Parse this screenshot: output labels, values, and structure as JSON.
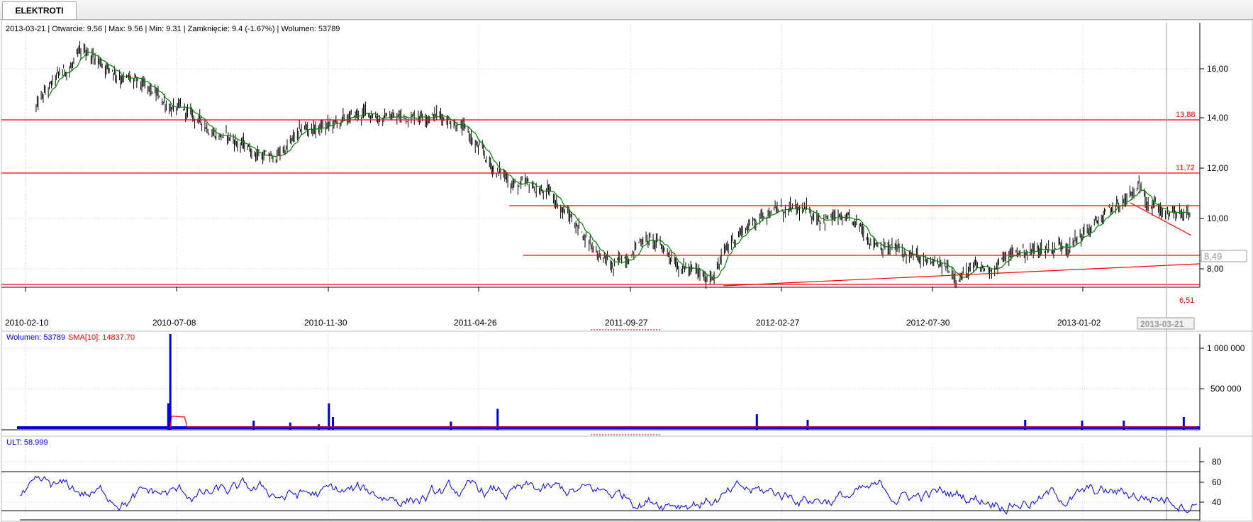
{
  "window": {
    "tab_label": "ELEKTROTI"
  },
  "price_panel": {
    "info_line": "2013-03-21 | Otwarcie: 9.56 | Max: 9.56 | Min: 9.31 | Zamknięcie: 9.4 (-1.67%)  | Wolumen: 53789",
    "current_price_label": "8,49",
    "level_labels": [
      "13,88",
      "11,72",
      "6,51"
    ],
    "x_labels": [
      "2010-02-10",
      "2010-07-08",
      "2010-11-30",
      "2011-04-26",
      "2011-09-27",
      "2012-02-27",
      "2012-07-30",
      "2013-01-02"
    ],
    "cursor_date": "2013-03-21"
  },
  "volume_panel": {
    "info_volume": "Wolumen: 53789",
    "info_sma": "SMA[10]: 14837.70"
  },
  "ult_panel": {
    "info": "ULT: 58.999"
  },
  "colors": {
    "price_bar": "#000000",
    "sma_line": "#008000",
    "support_resistance": "#ff0000",
    "volume_bar": "#0000d0",
    "volume_sma": "#ff0000",
    "ult_line": "#0000ff",
    "grid": "#c8c8c8"
  },
  "chart_data": [
    {
      "type": "line",
      "title": "",
      "x_tick_labels": [
        "2010-02-10",
        "2010-07-08",
        "2010-11-30",
        "2011-04-26",
        "2011-09-27",
        "2012-02-27",
        "2012-07-30",
        "2013-01-02"
      ],
      "y_tick_labels": [
        "8,00",
        "10,00",
        "12,00",
        "14,00",
        "16,00"
      ],
      "ylim": [
        6.4,
        17.2
      ],
      "grid": true,
      "series": [
        {
          "name": "",
          "dates": [
            "2010-02-01",
            "2010-03-01",
            "2010-04-01",
            "2010-05-01",
            "2010-06-01",
            "2010-07-01",
            "2010-08-01",
            "2010-09-01",
            "2010-10-01",
            "2010-11-01",
            "2010-12-01",
            "2011-01-01",
            "2011-02-01",
            "2011-03-01",
            "2011-04-01",
            "2011-05-01",
            "2011-06-01",
            "2011-07-01",
            "2011-08-01",
            "2011-09-01",
            "2011-10-01",
            "2011-11-01",
            "2011-12-01",
            "2012-01-01",
            "2012-02-01",
            "2012-03-01",
            "2012-04-01",
            "2012-05-01",
            "2012-06-01",
            "2012-07-01",
            "2012-08-01",
            "2012-09-01",
            "2012-10-01",
            "2012-11-01",
            "2012-12-01",
            "2013-01-01",
            "2013-02-01",
            "2013-03-01"
          ],
          "close": [
            13.2,
            14.8,
            16.0,
            15.2,
            14.3,
            13.6,
            12.9,
            12.2,
            11.6,
            12.8,
            13.0,
            13.5,
            13.3,
            13.6,
            13.2,
            11.4,
            10.5,
            10.2,
            8.7,
            7.1,
            8.5,
            7.6,
            6.6,
            8.6,
            9.6,
            9.4,
            9.3,
            8.7,
            8.0,
            7.4,
            7.0,
            7.1,
            7.8,
            8.0,
            8.4,
            9.4,
            10.4,
            9.3
          ]
        }
      ],
      "annotations": [
        {
          "type": "horizontal",
          "value": 13.88,
          "label": "13,88"
        },
        {
          "type": "horizontal",
          "value": 11.72,
          "label": "11,72"
        },
        {
          "type": "horizontal",
          "value": 6.51,
          "label": "6,51"
        },
        {
          "type": "horizontal",
          "value": 10.45,
          "label": ""
        },
        {
          "type": "horizontal",
          "value": 8.49,
          "label": ""
        },
        {
          "type": "trendline",
          "from": [
            6.51,
            "2011-12-12"
          ],
          "to": [
            7.4,
            "2013-03-28"
          ]
        },
        {
          "type": "trendline",
          "from": [
            10.6,
            "2012-12-20"
          ],
          "to": [
            9.0,
            "2013-03-28"
          ]
        }
      ]
    },
    {
      "type": "bar",
      "title": "",
      "y_tick_labels": [
        "500 000",
        "1 000 000"
      ],
      "ylim": [
        0,
        1050000
      ],
      "series": [
        {
          "name": "Wolumen",
          "spikes": [
            {
              "date": "2010-06-20",
              "value": 290000
            },
            {
              "date": "2010-06-22",
              "value": 1050000
            },
            {
              "date": "2010-09-12",
              "value": 100000
            },
            {
              "date": "2010-10-18",
              "value": 80000
            },
            {
              "date": "2010-11-15",
              "value": 60000
            },
            {
              "date": "2010-11-25",
              "value": 290000
            },
            {
              "date": "2010-11-29",
              "value": 140000
            },
            {
              "date": "2011-03-25",
              "value": 90000
            },
            {
              "date": "2011-05-10",
              "value": 230000
            },
            {
              "date": "2012-01-20",
              "value": 170000
            },
            {
              "date": "2012-03-10",
              "value": 110000
            },
            {
              "date": "2012-10-10",
              "value": 110000
            },
            {
              "date": "2012-12-05",
              "value": 100000
            },
            {
              "date": "2013-01-15",
              "value": 100000
            },
            {
              "date": "2013-03-15",
              "value": 140000
            }
          ]
        }
      ]
    },
    {
      "type": "line",
      "title": "",
      "y_tick_labels": [
        "40",
        "60",
        "80"
      ],
      "ylim": [
        30,
        90
      ],
      "reference_lines": [
        70,
        30
      ],
      "series": [
        {
          "name": "ULT",
          "last_value": 58.999
        }
      ]
    }
  ]
}
